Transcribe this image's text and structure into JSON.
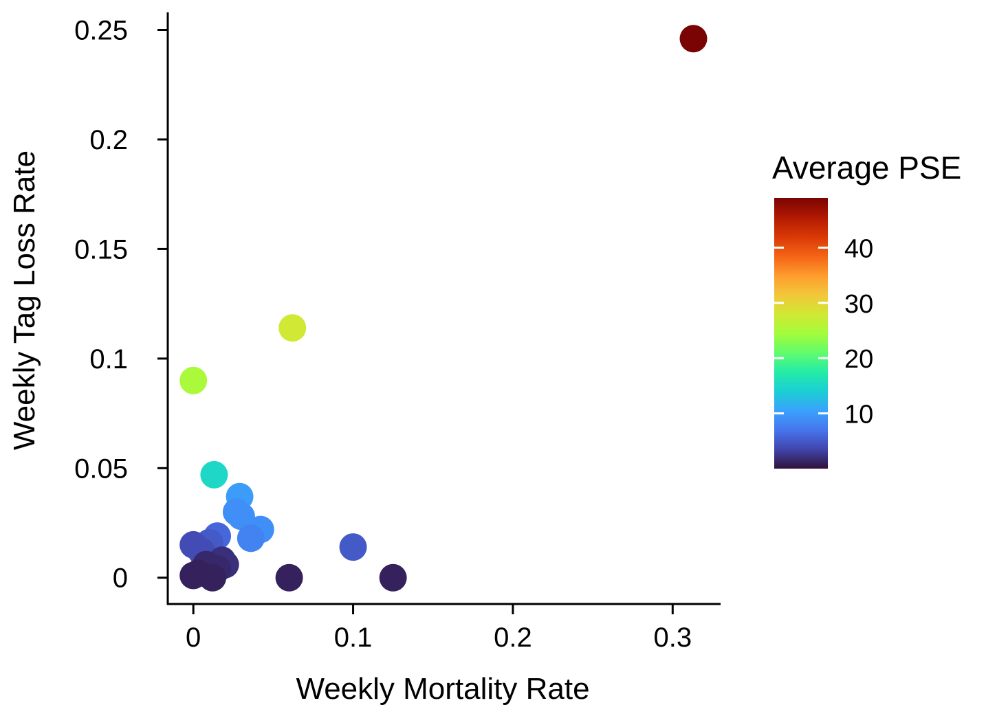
{
  "chart_data": {
    "type": "scatter",
    "title": "",
    "xlabel": "Weekly Mortality Rate",
    "ylabel": "Weekly Tag Loss Rate",
    "xlim": [
      -0.016,
      0.33
    ],
    "ylim": [
      -0.012,
      0.258
    ],
    "x_ticks": [
      {
        "value": 0,
        "label": "0"
      },
      {
        "value": 0.1,
        "label": "0.1"
      },
      {
        "value": 0.2,
        "label": "0.2"
      },
      {
        "value": 0.3,
        "label": "0.3"
      }
    ],
    "y_ticks": [
      {
        "value": 0,
        "label": "0"
      },
      {
        "value": 0.05,
        "label": "0.05"
      },
      {
        "value": 0.1,
        "label": "0.1"
      },
      {
        "value": 0.15,
        "label": "0.15"
      },
      {
        "value": 0.2,
        "label": "0.2"
      },
      {
        "value": 0.25,
        "label": "0.25"
      }
    ],
    "grid": false,
    "legend": {
      "title": "Average PSE",
      "placement": "right",
      "type": "colorbar",
      "range": [
        0,
        49
      ],
      "ticks": [
        {
          "value": 10,
          "label": "10"
        },
        {
          "value": 20,
          "label": "20"
        },
        {
          "value": 30,
          "label": "30"
        },
        {
          "value": 40,
          "label": "40"
        }
      ],
      "colormap": [
        "#30123b",
        "#4145ab",
        "#4675ed",
        "#39a2fc",
        "#1bcfd4",
        "#24eca6",
        "#61fc6c",
        "#a4fc3b",
        "#d1e834",
        "#f3c63a",
        "#fe9b2d",
        "#f36315",
        "#d93806",
        "#b11901",
        "#7a0403"
      ]
    },
    "points": [
      {
        "x": 0.313,
        "y": 0.246,
        "pse": 49
      },
      {
        "x": 0.062,
        "y": 0.114,
        "pse": 28
      },
      {
        "x": 0.0,
        "y": 0.09,
        "pse": 25
      },
      {
        "x": 0.013,
        "y": 0.047,
        "pse": 15
      },
      {
        "x": 0.029,
        "y": 0.037,
        "pse": 10
      },
      {
        "x": 0.027,
        "y": 0.03,
        "pse": 9
      },
      {
        "x": 0.03,
        "y": 0.028,
        "pse": 9
      },
      {
        "x": 0.042,
        "y": 0.022,
        "pse": 9
      },
      {
        "x": 0.036,
        "y": 0.018,
        "pse": 8
      },
      {
        "x": 0.015,
        "y": 0.019,
        "pse": 6
      },
      {
        "x": 0.01,
        "y": 0.016,
        "pse": 5
      },
      {
        "x": 0.1,
        "y": 0.014,
        "pse": 5
      },
      {
        "x": 0.0,
        "y": 0.015,
        "pse": 4
      },
      {
        "x": 0.005,
        "y": 0.012,
        "pse": 4
      },
      {
        "x": 0.018,
        "y": 0.008,
        "pse": 2
      },
      {
        "x": 0.02,
        "y": 0.006,
        "pse": 2
      },
      {
        "x": 0.015,
        "y": 0.004,
        "pse": 1.5
      },
      {
        "x": 0.008,
        "y": 0.006,
        "pse": 1.5
      },
      {
        "x": 0.0,
        "y": 0.001,
        "pse": 1
      },
      {
        "x": 0.003,
        "y": 0.002,
        "pse": 1
      },
      {
        "x": 0.012,
        "y": 0.0,
        "pse": 1
      },
      {
        "x": 0.06,
        "y": 0.0,
        "pse": 1
      },
      {
        "x": 0.125,
        "y": 0.0,
        "pse": 1
      }
    ]
  }
}
